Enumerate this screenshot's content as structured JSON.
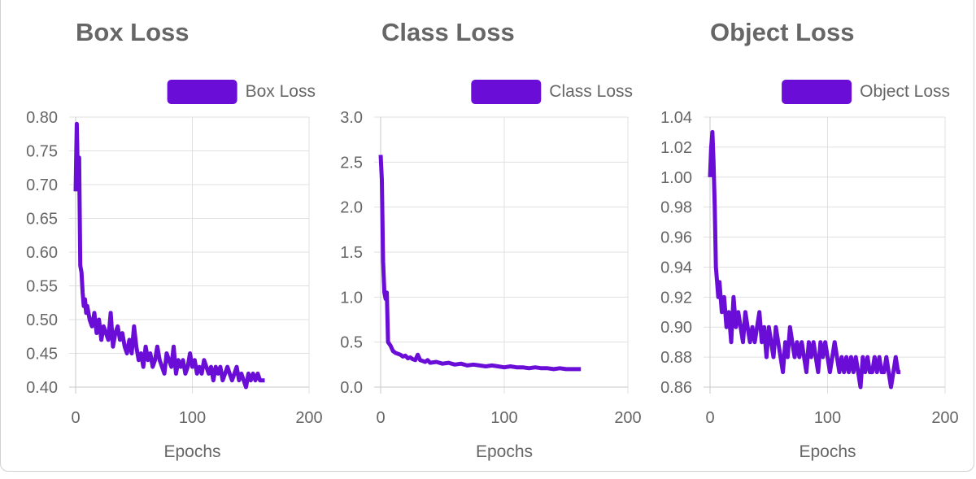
{
  "colors": {
    "series": "#6a0dd6",
    "grid": "#e0e0e0",
    "text": "#666666"
  },
  "chart_data": [
    {
      "type": "line",
      "title": "Box Loss",
      "xlabel": "Epochs",
      "ylabel": "",
      "xlim": [
        0,
        200
      ],
      "ylim": [
        0.4,
        0.8
      ],
      "xticks": [
        0,
        100,
        200
      ],
      "yticks": [
        0.4,
        0.45,
        0.5,
        0.55,
        0.6,
        0.65,
        0.7,
        0.75,
        0.8
      ],
      "ytick_decimals": 2,
      "grid": true,
      "legend": "top-right",
      "series": [
        {
          "name": "Box Loss",
          "x": [
            0,
            1,
            2,
            3,
            4,
            5,
            6,
            7,
            8,
            9,
            10,
            12,
            14,
            16,
            18,
            20,
            22,
            24,
            26,
            28,
            30,
            32,
            34,
            36,
            38,
            40,
            42,
            44,
            46,
            48,
            50,
            52,
            54,
            56,
            58,
            60,
            62,
            64,
            66,
            68,
            70,
            72,
            74,
            76,
            78,
            80,
            82,
            84,
            86,
            88,
            90,
            92,
            94,
            96,
            98,
            100,
            102,
            104,
            106,
            108,
            110,
            112,
            114,
            116,
            118,
            120,
            122,
            124,
            126,
            128,
            130,
            132,
            134,
            136,
            138,
            140,
            142,
            144,
            146,
            148,
            150,
            152,
            154,
            156,
            158,
            160,
            162
          ],
          "values": [
            0.69,
            0.79,
            0.7,
            0.74,
            0.58,
            0.57,
            0.54,
            0.52,
            0.53,
            0.51,
            0.52,
            0.5,
            0.49,
            0.51,
            0.48,
            0.5,
            0.47,
            0.49,
            0.48,
            0.47,
            0.51,
            0.46,
            0.48,
            0.49,
            0.47,
            0.48,
            0.46,
            0.45,
            0.47,
            0.45,
            0.49,
            0.46,
            0.44,
            0.45,
            0.43,
            0.46,
            0.44,
            0.45,
            0.43,
            0.44,
            0.46,
            0.44,
            0.43,
            0.42,
            0.45,
            0.44,
            0.43,
            0.46,
            0.42,
            0.44,
            0.43,
            0.44,
            0.42,
            0.43,
            0.45,
            0.43,
            0.44,
            0.42,
            0.43,
            0.42,
            0.44,
            0.43,
            0.42,
            0.43,
            0.41,
            0.43,
            0.42,
            0.43,
            0.41,
            0.42,
            0.43,
            0.42,
            0.41,
            0.42,
            0.43,
            0.41,
            0.42,
            0.41,
            0.4,
            0.42,
            0.41,
            0.42,
            0.41,
            0.42,
            0.41,
            0.41,
            0.41
          ]
        }
      ]
    },
    {
      "type": "line",
      "title": "Class Loss",
      "xlabel": "Epochs",
      "ylabel": "",
      "xlim": [
        0,
        200
      ],
      "ylim": [
        0,
        3.0
      ],
      "xticks": [
        0,
        100,
        200
      ],
      "yticks": [
        0,
        0.5,
        1.0,
        1.5,
        2.0,
        2.5,
        3.0
      ],
      "ytick_decimals": 1,
      "grid": true,
      "legend": "top-right",
      "series": [
        {
          "name": "Class Loss",
          "x": [
            0,
            1,
            2,
            3,
            4,
            5,
            6,
            8,
            10,
            12,
            14,
            16,
            18,
            20,
            22,
            24,
            26,
            28,
            30,
            32,
            34,
            36,
            38,
            40,
            45,
            50,
            55,
            60,
            65,
            70,
            75,
            80,
            85,
            90,
            95,
            100,
            105,
            110,
            115,
            120,
            125,
            130,
            135,
            140,
            145,
            150,
            155,
            160,
            162
          ],
          "values": [
            2.58,
            2.3,
            1.4,
            1.05,
            0.98,
            1.05,
            0.5,
            0.46,
            0.4,
            0.38,
            0.37,
            0.36,
            0.34,
            0.35,
            0.32,
            0.33,
            0.31,
            0.3,
            0.36,
            0.3,
            0.29,
            0.28,
            0.3,
            0.27,
            0.28,
            0.26,
            0.27,
            0.25,
            0.26,
            0.24,
            0.25,
            0.24,
            0.23,
            0.24,
            0.23,
            0.22,
            0.23,
            0.22,
            0.22,
            0.21,
            0.22,
            0.21,
            0.21,
            0.2,
            0.21,
            0.2,
            0.2,
            0.2,
            0.2
          ]
        }
      ]
    },
    {
      "type": "line",
      "title": "Object Loss",
      "xlabel": "Epochs",
      "ylabel": "",
      "xlim": [
        0,
        200
      ],
      "ylim": [
        0.86,
        1.04
      ],
      "xticks": [
        0,
        100,
        200
      ],
      "yticks": [
        0.86,
        0.88,
        0.9,
        0.92,
        0.94,
        0.96,
        0.98,
        1.0,
        1.02,
        1.04
      ],
      "ytick_decimals": 2,
      "grid": true,
      "legend": "top-right",
      "series": [
        {
          "name": "Object Loss",
          "x": [
            0,
            1,
            2,
            3,
            4,
            5,
            6,
            7,
            8,
            10,
            12,
            14,
            16,
            18,
            20,
            22,
            24,
            26,
            28,
            30,
            32,
            34,
            36,
            38,
            40,
            42,
            44,
            46,
            48,
            50,
            52,
            54,
            56,
            58,
            60,
            62,
            64,
            66,
            68,
            70,
            72,
            74,
            76,
            78,
            80,
            82,
            84,
            86,
            88,
            90,
            92,
            94,
            96,
            98,
            100,
            102,
            104,
            106,
            108,
            110,
            112,
            114,
            116,
            118,
            120,
            122,
            124,
            126,
            128,
            130,
            132,
            134,
            136,
            138,
            140,
            142,
            144,
            146,
            148,
            150,
            152,
            154,
            156,
            158,
            160,
            162
          ],
          "values": [
            1.0,
            1.02,
            1.03,
            1.01,
            0.98,
            0.94,
            0.93,
            0.92,
            0.93,
            0.91,
            0.92,
            0.9,
            0.91,
            0.89,
            0.92,
            0.9,
            0.91,
            0.9,
            0.89,
            0.91,
            0.9,
            0.89,
            0.9,
            0.89,
            0.9,
            0.91,
            0.89,
            0.9,
            0.88,
            0.9,
            0.89,
            0.88,
            0.9,
            0.89,
            0.88,
            0.87,
            0.89,
            0.88,
            0.9,
            0.89,
            0.88,
            0.89,
            0.88,
            0.89,
            0.88,
            0.87,
            0.89,
            0.88,
            0.89,
            0.88,
            0.87,
            0.89,
            0.88,
            0.89,
            0.88,
            0.87,
            0.88,
            0.89,
            0.88,
            0.87,
            0.88,
            0.87,
            0.88,
            0.87,
            0.88,
            0.87,
            0.88,
            0.87,
            0.86,
            0.88,
            0.87,
            0.88,
            0.87,
            0.87,
            0.88,
            0.87,
            0.88,
            0.87,
            0.87,
            0.88,
            0.87,
            0.86,
            0.87,
            0.88,
            0.87,
            0.87
          ]
        }
      ]
    }
  ]
}
